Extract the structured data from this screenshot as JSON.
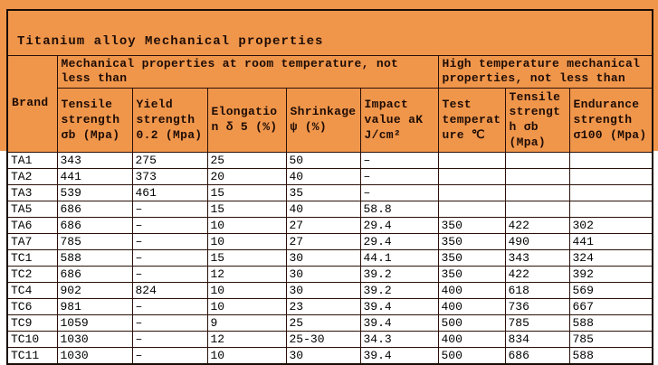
{
  "title": "Titanium alloy Mechanical properties",
  "colors": {
    "header_background": "#F0964B",
    "data_background": "#FFFFFF",
    "border": "#2A1008",
    "header_text": "#1E0C05",
    "data_text": "#000000"
  },
  "table": {
    "brand_label": "Brand",
    "group_headers": {
      "room": "Mechanical properties at room temperature, not less than",
      "high": "High temperature mechanical properties, not less than"
    },
    "columns": [
      "Tensile strength σb (Mpa)",
      "Yield strength 0.2 (Mpa)",
      "Elongation δ 5 (%)",
      "Shrinkage ψ (%)",
      "Impact value aK J/cm²",
      "Test temperature ℃",
      "Tensile strength σb (Mpa)",
      "Endurance strength σ100 (Mpa)"
    ],
    "rows": [
      {
        "brand": "TA1",
        "values": [
          "343",
          "275",
          "25",
          "50",
          "–",
          "",
          "",
          ""
        ]
      },
      {
        "brand": "TA2",
        "values": [
          "441",
          "373",
          "20",
          "40",
          "–",
          "",
          "",
          ""
        ]
      },
      {
        "brand": "TA3",
        "values": [
          "539",
          "461",
          "15",
          "35",
          "–",
          "",
          "",
          ""
        ]
      },
      {
        "brand": "TA5",
        "values": [
          "686",
          "–",
          "15",
          "40",
          "58.8",
          "",
          "",
          ""
        ]
      },
      {
        "brand": "TA6",
        "values": [
          "686",
          "–",
          "10",
          "27",
          "29.4",
          "350",
          "422",
          "302"
        ]
      },
      {
        "brand": "TA7",
        "values": [
          "785",
          "–",
          "10",
          "27",
          "29.4",
          "350",
          "490",
          "441"
        ]
      },
      {
        "brand": "TC1",
        "values": [
          "588",
          "–",
          "15",
          "30",
          "44.1",
          "350",
          "343",
          "324"
        ]
      },
      {
        "brand": "TC2",
        "values": [
          "686",
          "–",
          "12",
          "30",
          "39.2",
          "350",
          "422",
          "392"
        ]
      },
      {
        "brand": "TC4",
        "values": [
          "902",
          "824",
          "10",
          "30",
          "39.2",
          "400",
          "618",
          "569"
        ]
      },
      {
        "brand": "TC6",
        "values": [
          "981",
          "–",
          "10",
          "23",
          "39.4",
          "400",
          "736",
          "667"
        ]
      },
      {
        "brand": "TC9",
        "values": [
          "1059",
          "–",
          "9",
          "25",
          "39.4",
          "500",
          "785",
          "588"
        ]
      },
      {
        "brand": "TC10",
        "values": [
          "1030",
          "–",
          "12",
          "25-30",
          "34.3",
          "400",
          "834",
          "785"
        ]
      },
      {
        "brand": "TC11",
        "values": [
          "1030",
          "–",
          "10",
          "30",
          "39.4",
          "500",
          "686",
          "588"
        ]
      }
    ]
  }
}
